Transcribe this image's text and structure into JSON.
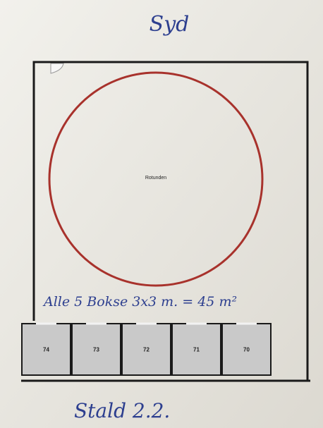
{
  "header": {
    "title": "Syd"
  },
  "plan": {
    "circle_label": "Rotunden",
    "note": "Alle 5 Bokse  3x3 m. = 45 m²",
    "boxes": [
      "74",
      "73",
      "72",
      "71",
      "70"
    ]
  },
  "footer": {
    "label": "Stald 2.2."
  }
}
